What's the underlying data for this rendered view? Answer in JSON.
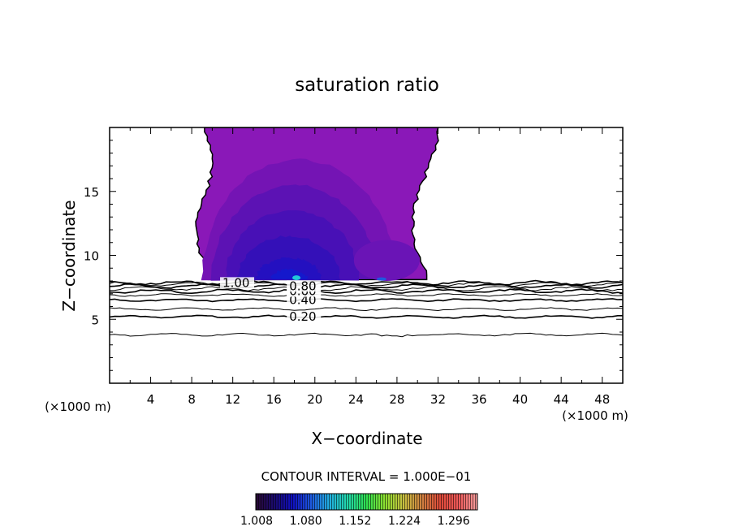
{
  "chart_data": {
    "type": "contour",
    "title": "saturation ratio",
    "xlabel": "X−coordinate",
    "ylabel": "Z−coordinate",
    "x_unit_label": "(×1000 m)",
    "z_unit_label": "(×1000 m)",
    "xlim": [
      0,
      50
    ],
    "ylim": [
      0,
      20
    ],
    "x_ticks": [
      4,
      8,
      12,
      16,
      20,
      24,
      28,
      32,
      36,
      40,
      44,
      48
    ],
    "y_ticks": [
      5,
      10,
      15
    ],
    "contour_interval_text": "CONTOUR INTERVAL = 1.000E−01",
    "contour_lines": [
      {
        "level": "0.20",
        "z": 5.2,
        "labeled": true,
        "label_x": 17.5
      },
      {
        "level": "0.30",
        "z": 5.8,
        "labeled": false
      },
      {
        "level": "0.40",
        "z": 6.5,
        "labeled": true,
        "label_x": 17.5
      },
      {
        "level": "0.50",
        "z": 6.9,
        "labeled": false
      },
      {
        "level": "0.60",
        "z": 7.2,
        "labeled": true,
        "label_x": 17.5
      },
      {
        "level": "0.70",
        "z": 7.4,
        "labeled": false
      },
      {
        "level": "0.80",
        "z": 7.6,
        "labeled": true,
        "label_x": 17.5
      },
      {
        "level": "0.90",
        "z": 7.75,
        "labeled": false
      },
      {
        "level": "1.00",
        "z": 7.85,
        "labeled": true,
        "label_x": 11.0
      },
      {
        "level": "0.10",
        "z": 3.8,
        "labeled": false
      }
    ],
    "filled_region": {
      "description_zmin": 8.1,
      "zmax": 20,
      "x_left_range": [
        8.5,
        10
      ],
      "x_right_range": [
        29.5,
        32
      ],
      "value_range": [
        1.008,
        1.05
      ]
    },
    "colorbar": {
      "min": 1.008,
      "max": 1.332,
      "ticks": [
        "1.008",
        "1.080",
        "1.152",
        "1.224",
        "1.296"
      ],
      "colors": [
        "#2a0a33",
        "#1a0a6e",
        "#1010c0",
        "#1e5ae0",
        "#22b0e0",
        "#22d8a8",
        "#30e050",
        "#8ee030",
        "#c8c040",
        "#d08040",
        "#e04a3a",
        "#f05a5a",
        "#f8a0a0"
      ]
    }
  }
}
